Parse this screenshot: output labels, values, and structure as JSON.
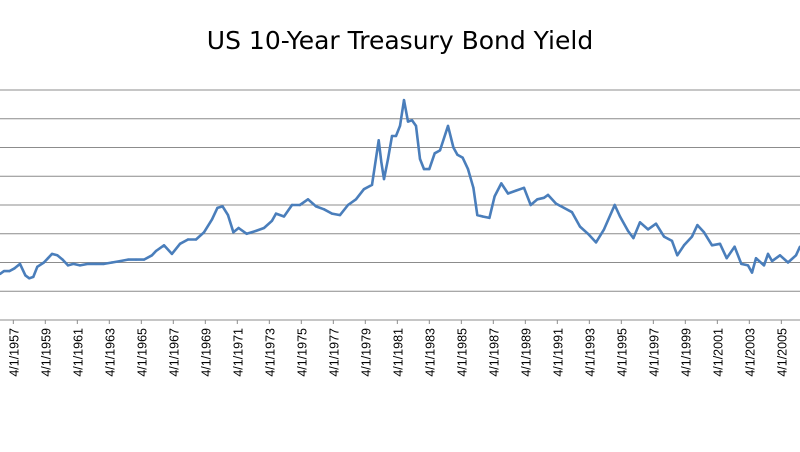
{
  "chart_data": {
    "type": "line",
    "title": "US 10-Year Treasury Bond Yield",
    "xlabel": "",
    "ylabel": "",
    "x_tick_labels": [
      "4/1/1957",
      "4/1/1959",
      "4/1/1961",
      "4/1/1963",
      "4/1/1965",
      "4/1/1967",
      "4/1/1969",
      "4/1/1971",
      "4/1/1973",
      "4/1/1975",
      "4/1/1977",
      "4/1/1979",
      "4/1/1981",
      "4/1/1983",
      "4/1/1985",
      "4/1/1987",
      "4/1/1989",
      "4/1/1991",
      "4/1/1993",
      "4/1/1995",
      "4/1/1997",
      "4/1/1999",
      "4/1/2001",
      "4/1/2003",
      "4/1/2005"
    ],
    "xlim": [
      "1956-06-01",
      "2006-06-01"
    ],
    "ylim": [
      0,
      16
    ],
    "grid": true,
    "legend": "none",
    "color": "#4a7ebb",
    "series": [
      {
        "x": [
          "1956-06-01",
          "1956-09-01",
          "1957-01-01",
          "1957-05-01",
          "1957-09-01",
          "1958-01-01",
          "1958-04-01",
          "1958-07-01",
          "1958-10-01",
          "1959-03-01",
          "1959-06-01",
          "1959-09-01",
          "1960-01-01",
          "1960-05-01",
          "1960-09-01",
          "1961-01-01",
          "1961-06-01",
          "1961-12-01",
          "1962-06-01",
          "1962-12-01",
          "1963-06-01",
          "1963-12-01",
          "1964-06-01",
          "1964-12-01",
          "1965-06-01",
          "1965-12-01",
          "1966-03-01",
          "1966-09-01",
          "1967-03-01",
          "1967-09-01",
          "1968-03-01",
          "1968-09-01",
          "1969-03-01",
          "1969-09-01",
          "1970-01-01",
          "1970-05-01",
          "1970-09-01",
          "1971-01-01",
          "1971-05-01",
          "1971-11-01",
          "1972-06-01",
          "1972-12-01",
          "1973-06-01",
          "1973-09-01",
          "1974-03-01",
          "1974-09-01",
          "1975-03-01",
          "1975-09-01",
          "1976-03-01",
          "1976-09-01",
          "1977-03-01",
          "1977-09-01",
          "1978-03-01",
          "1978-09-01",
          "1979-03-01",
          "1979-09-01",
          "1980-02-01",
          "1980-04-01",
          "1980-06-01",
          "1980-09-01",
          "1980-12-01",
          "1981-03-01",
          "1981-06-01",
          "1981-09-01",
          "1981-12-01",
          "1982-03-01",
          "1982-06-01",
          "1982-09-01",
          "1982-12-01",
          "1983-04-01",
          "1983-08-01",
          "1983-12-01",
          "1984-06-01",
          "1984-10-01",
          "1985-01-01",
          "1985-05-01",
          "1985-09-01",
          "1986-01-01",
          "1986-04-01",
          "1986-08-01",
          "1987-01-01",
          "1987-05-01",
          "1987-10-01",
          "1988-03-01",
          "1988-09-01",
          "1989-03-01",
          "1989-08-01",
          "1990-01-01",
          "1990-06-01",
          "1990-09-01",
          "1991-03-01",
          "1991-09-01",
          "1992-03-01",
          "1992-09-01",
          "1993-03-01",
          "1993-09-01",
          "1994-03-01",
          "1994-11-01",
          "1995-03-01",
          "1995-09-01",
          "1996-01-01",
          "1996-06-01",
          "1996-12-01",
          "1997-06-01",
          "1997-12-01",
          "1998-06-01",
          "1998-10-01",
          "1999-03-01",
          "1999-09-01",
          "2000-01-01",
          "2000-06-01",
          "2000-12-01",
          "2001-06-01",
          "2001-11-01",
          "2002-05-01",
          "2002-10-01",
          "2003-03-01",
          "2003-06-01",
          "2003-09-01",
          "2004-03-01",
          "2004-06-01",
          "2004-09-01",
          "2005-03-01",
          "2005-09-01",
          "2006-03-01",
          "2006-06-01"
        ],
        "values": [
          3.2,
          3.4,
          3.4,
          3.6,
          3.9,
          3.1,
          2.9,
          3.0,
          3.7,
          4.0,
          4.3,
          4.6,
          4.5,
          4.2,
          3.8,
          3.9,
          3.8,
          3.9,
          3.9,
          3.9,
          4.0,
          4.1,
          4.2,
          4.2,
          4.2,
          4.5,
          4.8,
          5.2,
          4.6,
          5.3,
          5.6,
          5.6,
          6.1,
          7.0,
          7.8,
          7.9,
          7.3,
          6.1,
          6.4,
          6.0,
          6.2,
          6.4,
          6.9,
          7.4,
          7.2,
          8.0,
          8.0,
          8.4,
          7.9,
          7.7,
          7.4,
          7.3,
          8.0,
          8.4,
          9.1,
          9.4,
          12.5,
          11.0,
          9.8,
          11.2,
          12.8,
          12.8,
          13.5,
          15.3,
          13.8,
          13.9,
          13.5,
          11.2,
          10.5,
          10.5,
          11.6,
          11.8,
          13.5,
          12.0,
          11.5,
          11.3,
          10.5,
          9.2,
          7.3,
          7.2,
          7.1,
          8.6,
          9.5,
          8.8,
          9.0,
          9.2,
          8.0,
          8.4,
          8.5,
          8.7,
          8.1,
          7.8,
          7.5,
          6.5,
          6.0,
          5.4,
          6.3,
          8.0,
          7.2,
          6.2,
          5.7,
          6.8,
          6.3,
          6.7,
          5.8,
          5.5,
          4.5,
          5.2,
          5.8,
          6.6,
          6.1,
          5.2,
          5.3,
          4.3,
          5.1,
          3.9,
          3.8,
          3.3,
          4.3,
          3.8,
          4.6,
          4.1,
          4.5,
          4.0,
          4.5,
          5.1
        ]
      }
    ]
  }
}
